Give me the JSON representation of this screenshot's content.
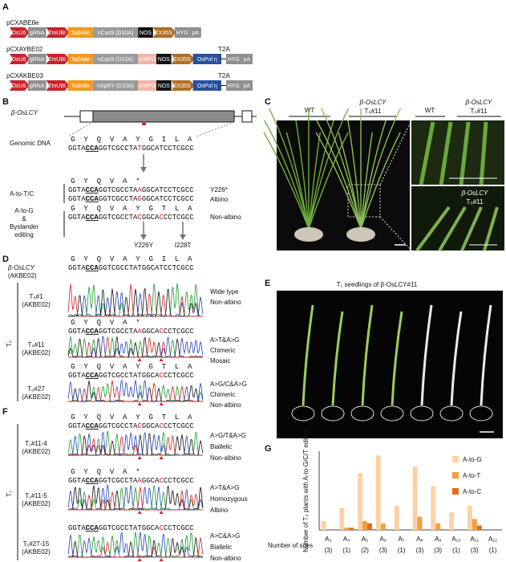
{
  "panel_labels": [
    "A",
    "B",
    "C",
    "D",
    "E",
    "F",
    "G"
  ],
  "panel_a": {
    "constructs": [
      {
        "name": "pCXABE8e",
        "elements": [
          {
            "label": "OsU6",
            "color": "#c8232c",
            "shape": "arrow"
          },
          {
            "label": "gRNA",
            "color": "#8f8f8f",
            "shape": "box"
          },
          {
            "label": "ZmUBI",
            "color": "#c8232c",
            "shape": "arrow"
          },
          {
            "label": "TadA8e",
            "color": "#f39a1e",
            "shape": "box"
          },
          {
            "label": "nCas9 (D10A)",
            "color": "#9a9a9a",
            "shape": "box"
          },
          {
            "label": "NOS",
            "color": "#111111",
            "shape": "box"
          },
          {
            "label": "2X35S",
            "color": "#b06f24",
            "shape": "arrow"
          },
          {
            "label": "HYG",
            "color": "#8f8f8f",
            "shape": "box"
          },
          {
            "label": "pA",
            "color": "#8f8f8f",
            "shape": "box"
          }
        ]
      },
      {
        "name": "pCXAYBE02",
        "t2a": "T2A",
        "elements": [
          {
            "label": "OsU6",
            "color": "#c8232c",
            "shape": "arrow"
          },
          {
            "label": "gRNA",
            "color": "#8f8f8f",
            "shape": "box"
          },
          {
            "label": "ZmUBI",
            "color": "#c8232c",
            "shape": "arrow"
          },
          {
            "label": "TadA8e",
            "color": "#f39a1e",
            "shape": "box"
          },
          {
            "label": "nCas9 (D10A)",
            "color": "#9a9a9a",
            "shape": "box"
          },
          {
            "label": "mMPG",
            "color": "#f3b3a8",
            "shape": "box"
          },
          {
            "label": "NOS",
            "color": "#111111",
            "shape": "box"
          },
          {
            "label": "2X35S",
            "color": "#b06f24",
            "shape": "arrow"
          },
          {
            "label": "OsPol η",
            "color": "#27509b",
            "shape": "box"
          },
          {
            "label": "HYG",
            "color": "#8f8f8f",
            "shape": "box"
          },
          {
            "label": "pA",
            "color": "#8f8f8f",
            "shape": "box"
          }
        ]
      },
      {
        "name": "pCXAKBE03",
        "t2a": "T2A",
        "elements": [
          {
            "label": "OsU6",
            "color": "#c8232c",
            "shape": "arrow"
          },
          {
            "label": "gRNA",
            "color": "#8f8f8f",
            "shape": "box"
          },
          {
            "label": "ZmUBI",
            "color": "#c8232c",
            "shape": "arrow"
          },
          {
            "label": "TadA8e",
            "color": "#f39a1e",
            "shape": "box"
          },
          {
            "label": "nSpRY (D10A)",
            "color": "#9a9a9a",
            "shape": "box"
          },
          {
            "label": "mMPG",
            "color": "#f3b3a8",
            "shape": "box"
          },
          {
            "label": "NOS",
            "color": "#111111",
            "shape": "box"
          },
          {
            "label": "2X35S",
            "color": "#b06f24",
            "shape": "arrow"
          },
          {
            "label": "OsPol η",
            "color": "#27509b",
            "shape": "box"
          },
          {
            "label": "HYG",
            "color": "#8f8f8f",
            "shape": "box"
          },
          {
            "label": "pA",
            "color": "#8f8f8f",
            "shape": "box"
          }
        ]
      }
    ]
  },
  "panel_b": {
    "gene": "β-OsLCY",
    "genomic_label": "Genomic DNA",
    "genomic": {
      "aa": "G Y Q V A Y G I L A",
      "seq": [
        {
          "text": "GGTA"
        },
        {
          "text": "CCA",
          "style": "pam"
        },
        {
          "text": "GGTCGCCTA"
        },
        {
          "text": "T",
          "style": "edit"
        },
        {
          "text": "GGCATCCTCGCC"
        }
      ]
    },
    "to_tc": {
      "label": "A-to-T/C",
      "aa": "G Y Q V A *",
      "seqs": [
        [
          {
            "text": "GGTA"
          },
          {
            "text": "CCA",
            "style": "pam"
          },
          {
            "text": "GGTCGCCTA"
          },
          {
            "text": "A",
            "style": "edit"
          },
          {
            "text": "GGCATCCTCGCC"
          }
        ],
        [
          {
            "text": "GGTA"
          },
          {
            "text": "CCA",
            "style": "pam"
          },
          {
            "text": "GGTCGCCTA"
          },
          {
            "text": "G",
            "style": "edit"
          },
          {
            "text": "GGCATCCTCGCC"
          }
        ]
      ],
      "notes": [
        "Y226*",
        "Albino"
      ]
    },
    "to_g": {
      "label": [
        "A-to-G",
        "&",
        "Bystander",
        "editing"
      ],
      "aa": "G Y Q V A Y G T L A",
      "seq": [
        {
          "text": "GGTA"
        },
        {
          "text": "CCA",
          "style": "pam"
        },
        {
          "text": "GGTCGCCTA"
        },
        {
          "text": "C",
          "style": "edit"
        },
        {
          "text": "GGCA"
        },
        {
          "text": "C",
          "style": "edit"
        },
        {
          "text": "CCTCGCC"
        }
      ],
      "note": "Non-albino",
      "mutations": [
        "Y226Y",
        "I228T"
      ]
    }
  },
  "panel_c": {
    "left": {
      "wt": "WT",
      "mutant": "β-OsLCY",
      "line": "T₀#11"
    },
    "right": {
      "wt": "WT",
      "mutant": "β-OsLCY",
      "line": "T₀#11"
    },
    "inset": {
      "mutant": "β-OsLCY",
      "line": "T₀#11"
    }
  },
  "panel_d": {
    "group": "T₀",
    "ref": {
      "name": "β-OsLCY",
      "vector": "(AKBE02)",
      "aa": "G Y Q V A Y G I L A",
      "seq": [
        {
          "text": "GGTA"
        },
        {
          "text": "CCA",
          "style": "pam"
        },
        {
          "text": "GGTCGCCTATGGCATCCTCGCC"
        }
      ]
    },
    "samples": [
      {
        "name": "T₀#1",
        "vector": "(AKBE02)",
        "notes": [
          "Wide type",
          "Non-albino"
        ]
      },
      {
        "name": "T₀#11",
        "vector": "(AKBE02)",
        "aa": "G Y Q V A *",
        "seq": [
          {
            "text": "GGTA"
          },
          {
            "text": "CCA",
            "style": "pam"
          },
          {
            "text": "GGTCGCCTA"
          },
          {
            "text": "A",
            "style": "edit"
          },
          {
            "text": "GGCA"
          },
          {
            "text": "C",
            "style": "edit"
          },
          {
            "text": "CCTCGCC"
          }
        ],
        "notes": [
          "A>T&A>G",
          "Chimeric",
          "Mosaic"
        ]
      },
      {
        "name": "T₀#27",
        "vector": "(AKBE02)",
        "aa": "G Y Q V A Y G T L A",
        "seq": [
          {
            "text": "GGTA"
          },
          {
            "text": "CCA",
            "style": "pam"
          },
          {
            "text": "GGTCGCCTATGGCA"
          },
          {
            "text": "C",
            "style": "edit"
          },
          {
            "text": "CCTCGCC"
          }
        ],
        "notes": [
          "A>G/C&A>G",
          "Chimeric",
          "Non-albino"
        ]
      }
    ]
  },
  "panel_e": {
    "title": "T₁ seedlings of β-OsLCY#11"
  },
  "panel_f": {
    "group": "T₁",
    "samples": [
      {
        "name": "T₁#11-4",
        "vector": "(AKBE02)",
        "aa": "G Y Q V A Y G T L A",
        "seq": [
          {
            "text": "GGTA"
          },
          {
            "text": "CCA",
            "style": "pam"
          },
          {
            "text": "GGTCGCCTA"
          },
          {
            "text": "C",
            "style": "edit"
          },
          {
            "text": "GGCA"
          },
          {
            "text": "C",
            "style": "edit"
          },
          {
            "text": "CCTCGCC"
          }
        ],
        "notes": [
          "A>G/T&A>G",
          "Biallelic",
          "Non-albino"
        ]
      },
      {
        "name": "T₁#11-5",
        "vector": "(AKBE02)",
        "aa": "G Y Q V A *",
        "seq": [
          {
            "text": "GGTA"
          },
          {
            "text": "CCA",
            "style": "pam"
          },
          {
            "text": "GGTCGCCTA"
          },
          {
            "text": "A",
            "style": "edit"
          },
          {
            "text": "GGCA"
          },
          {
            "text": "C",
            "style": "edit"
          },
          {
            "text": "CCTCGCC"
          }
        ],
        "notes": [
          "A>T&A>G",
          "Homozygous",
          "Albino"
        ]
      },
      {
        "name": "T₁#27-15",
        "vector": "(AKBE02)",
        "seq": [
          {
            "text": "GGTA"
          },
          {
            "text": "CCA",
            "style": "pam"
          },
          {
            "text": "GGTCGCCTATGGCA"
          },
          {
            "text": "C",
            "style": "edit"
          },
          {
            "text": "CCTCGCC"
          }
        ],
        "notes": [
          "A>C&A>G",
          "Biallelic",
          "Non-albino"
        ]
      }
    ]
  },
  "chart_data": {
    "type": "bar",
    "ylabel": "Number of T₀ plants with A-to-G/C/T editing",
    "categories": [
      "A₃",
      "A₄",
      "A₅",
      "A₆",
      "A₇",
      "A₈",
      "A₉",
      "A₁₀",
      "A₁₁",
      "A₁₂"
    ],
    "sites_label": "Number of sites",
    "sites": [
      "(3)",
      "(1)",
      "(2)",
      "(3)",
      "(1)",
      "(3)",
      "(3)",
      "(1)",
      "(3)",
      "(1)"
    ],
    "series": [
      {
        "name": "A-to-G",
        "color": "#fbd2a6",
        "values": [
          4,
          10,
          26,
          34,
          11,
          29,
          20,
          8,
          11,
          0
        ]
      },
      {
        "name": "A-to-T",
        "color": "#f2a03f",
        "values": [
          0,
          1,
          4,
          3,
          0,
          6,
          3,
          0,
          5,
          0
        ]
      },
      {
        "name": "A-to-C",
        "color": "#e36c1c",
        "values": [
          0,
          1,
          3,
          0,
          0,
          0,
          0,
          0,
          2,
          0
        ]
      }
    ],
    "ylim": [
      0,
      36
    ],
    "legend": "upper right"
  }
}
